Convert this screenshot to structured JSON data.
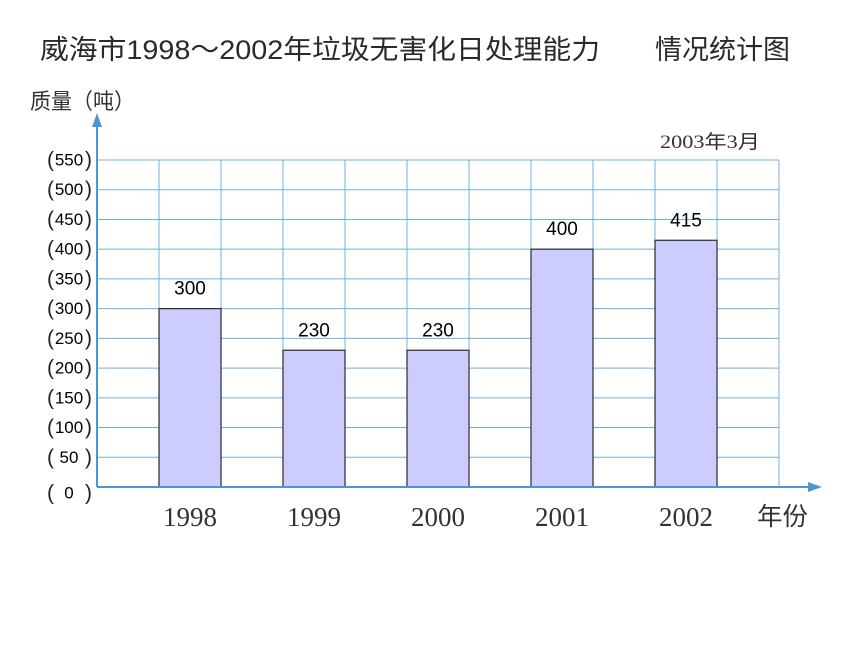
{
  "chart_data": {
    "type": "bar",
    "title": "威海市1998～2002年垃圾无害化日处理能力",
    "title_suffix": "情况统计图",
    "date_note": "2003年3月",
    "xlabel": "年份",
    "ylabel": "质量（吨）",
    "categories": [
      "1998",
      "1999",
      "2000",
      "2001",
      "2002"
    ],
    "values": [
      300,
      230,
      230,
      400,
      415
    ],
    "ylim": [
      0,
      550
    ],
    "y_ticks": [
      0,
      50,
      100,
      150,
      200,
      250,
      300,
      350,
      400,
      450,
      500,
      550
    ],
    "y_tick_bracket": [
      "(",
      ")"
    ],
    "grid": true,
    "legend": "none",
    "colors": {
      "bar_fill": "#ccccff",
      "bar_stroke": "#2b2b2b",
      "axis": "#4a97d3",
      "grid": "#6cb0e0"
    }
  }
}
